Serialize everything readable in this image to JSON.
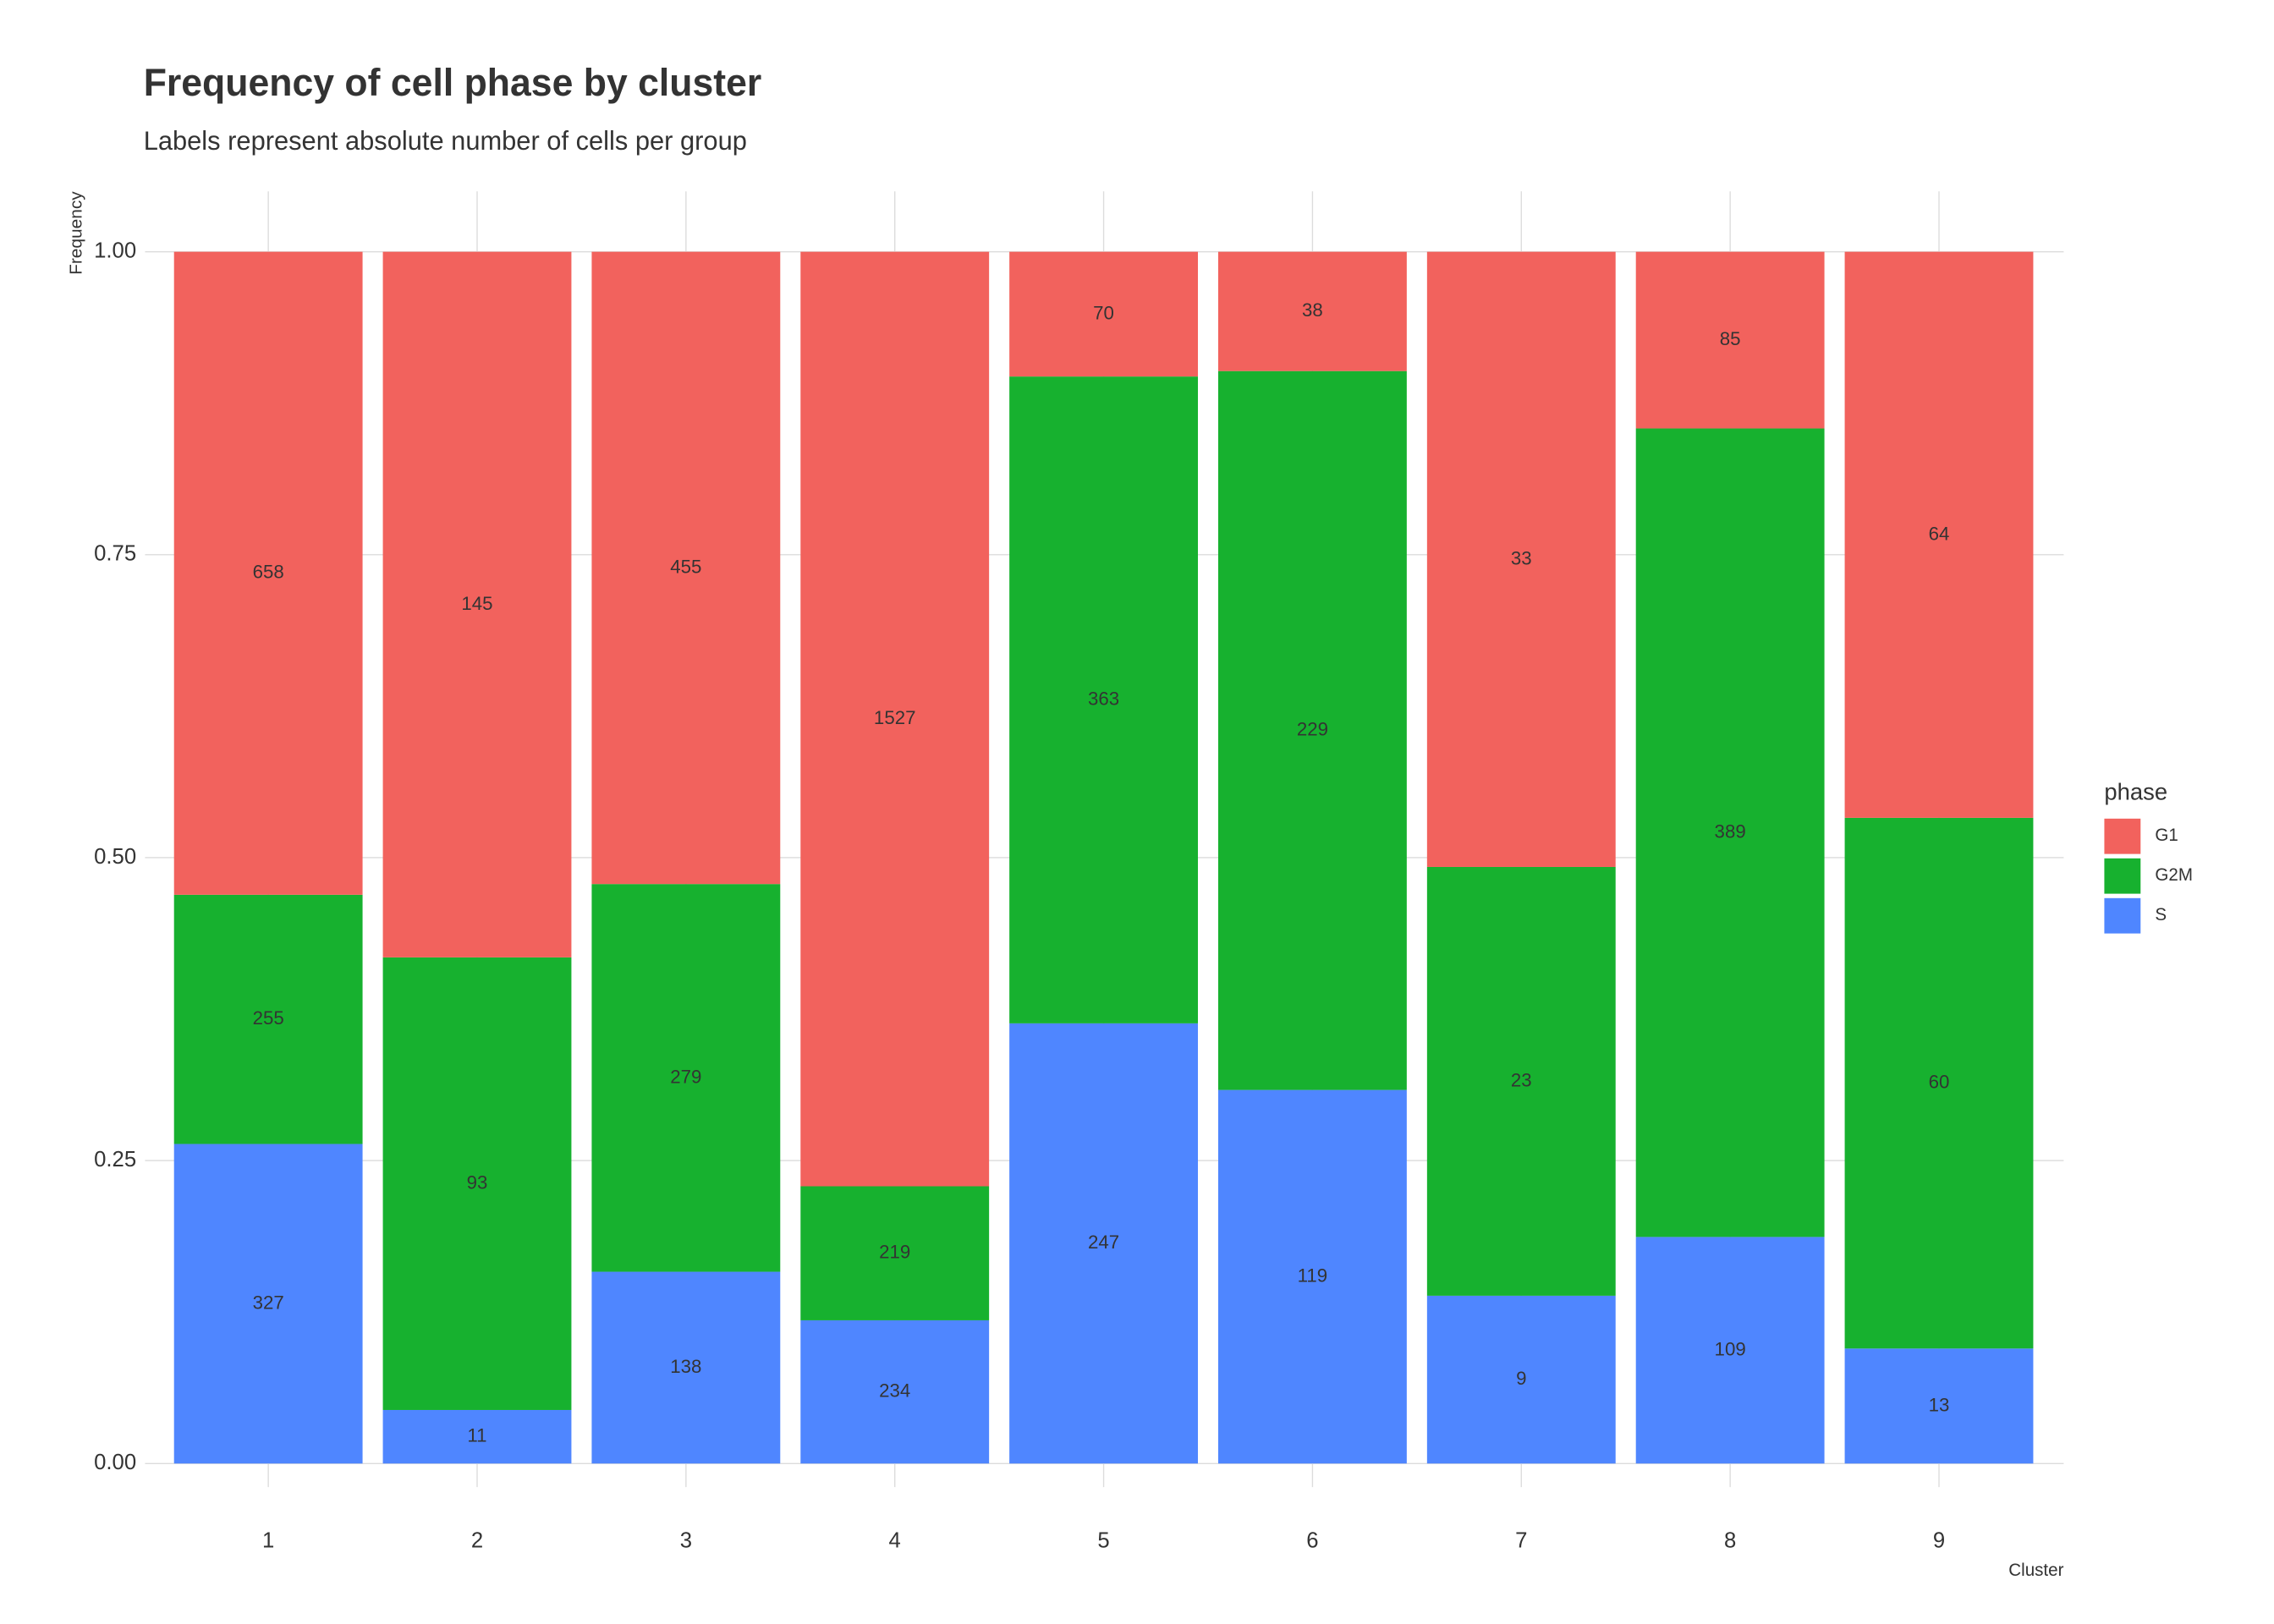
{
  "chart_data": {
    "type": "bar",
    "position": "fill",
    "title": "Frequency of cell phase by cluster",
    "subtitle": "Labels represent absolute number of cells per group",
    "x_label": "Cluster",
    "y_label": "Frequency",
    "categories": [
      "1",
      "2",
      "3",
      "4",
      "5",
      "6",
      "7",
      "8",
      "9"
    ],
    "legend_title": "phase",
    "legend_position": "right",
    "series": [
      {
        "name": "G1",
        "color": "#F2625D",
        "values": [
          658,
          145,
          455,
          1527,
          70,
          38,
          33,
          85,
          64
        ]
      },
      {
        "name": "G2M",
        "color": "#17B12F",
        "values": [
          255,
          93,
          279,
          219,
          363,
          229,
          23,
          389,
          60
        ]
      },
      {
        "name": "S",
        "color": "#4F86FF",
        "values": [
          327,
          11,
          138,
          234,
          247,
          119,
          9,
          109,
          13
        ]
      }
    ],
    "ylim": [
      0,
      1
    ],
    "yticks": [
      {
        "value": 0,
        "label": "0.00"
      },
      {
        "value": 0.25,
        "label": "0.25"
      },
      {
        "value": 0.5,
        "label": "0.50"
      },
      {
        "value": 0.75,
        "label": "0.75"
      },
      {
        "value": 1,
        "label": "1.00"
      }
    ],
    "grid": true
  }
}
